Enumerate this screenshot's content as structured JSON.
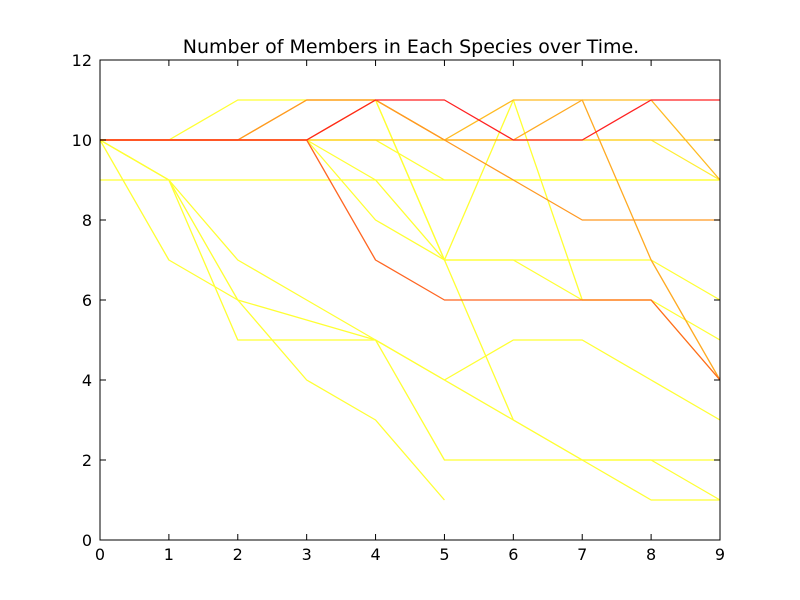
{
  "chart_data": {
    "type": "line",
    "title": "Number of Members in Each Species over Time.",
    "xlabel": "",
    "ylabel": "",
    "xlim": [
      0,
      9
    ],
    "ylim": [
      0,
      12
    ],
    "x_ticks": [
      0,
      1,
      2,
      3,
      4,
      5,
      6,
      7,
      8,
      9
    ],
    "y_ticks": [
      0,
      2,
      4,
      6,
      8,
      10,
      12
    ],
    "grid": false,
    "legend": "none",
    "series": [
      {
        "color": "#ffff33",
        "x": [
          0,
          1,
          2,
          3,
          4,
          5,
          6,
          7,
          8,
          9
        ],
        "y": [
          10,
          10,
          11,
          11,
          11,
          7,
          11,
          6,
          6,
          4
        ]
      },
      {
        "color": "#ffff33",
        "x": [
          0,
          1,
          2,
          3,
          4,
          5,
          6,
          7,
          8,
          9
        ],
        "y": [
          9,
          9,
          9,
          9,
          9,
          9,
          9,
          9,
          9,
          9
        ]
      },
      {
        "color": "#ffff33",
        "x": [
          0,
          1,
          2,
          3,
          4,
          5
        ],
        "y": [
          10,
          9,
          6,
          4,
          3,
          1
        ]
      },
      {
        "color": "#ffff33",
        "x": [
          0,
          1,
          2,
          3,
          4,
          5,
          6,
          7,
          8,
          9
        ],
        "y": [
          10,
          7,
          6,
          5.5,
          5,
          4,
          5,
          5,
          4,
          3
        ]
      },
      {
        "color": "#ffff33",
        "x": [
          0,
          1,
          2,
          3,
          4,
          5,
          6,
          7,
          8,
          9
        ],
        "y": [
          10,
          9,
          5,
          5,
          5,
          2,
          2,
          2,
          2,
          2
        ]
      },
      {
        "color": "#ffff33",
        "x": [
          0,
          1,
          2,
          3,
          4,
          5,
          6,
          7,
          8,
          9
        ],
        "y": [
          10,
          9,
          7,
          6,
          5,
          4,
          3,
          2,
          1,
          1
        ]
      },
      {
        "color": "#ffff33",
        "x": [
          0,
          1,
          2,
          3,
          4,
          5,
          6,
          7,
          8,
          9
        ],
        "y": [
          10,
          10,
          10,
          10,
          9,
          7,
          7,
          7,
          7,
          6
        ]
      },
      {
        "color": "#ffff33",
        "x": [
          0,
          1,
          2,
          3,
          4,
          5,
          6,
          7,
          8,
          9
        ],
        "y": [
          10,
          10,
          10,
          10,
          11,
          7,
          3,
          2,
          2,
          1
        ]
      },
      {
        "color": "#ffff33",
        "x": [
          0,
          1,
          2,
          3,
          4,
          5,
          6,
          7,
          8,
          9
        ],
        "y": [
          10,
          10,
          10,
          10,
          8,
          7,
          7,
          6,
          6,
          5
        ]
      },
      {
        "color": "#ffff33",
        "x": [
          0,
          1,
          2,
          3,
          4,
          5,
          6,
          7,
          8,
          9
        ],
        "y": [
          10,
          10,
          10,
          10,
          10,
          9,
          9,
          9,
          9,
          9
        ]
      },
      {
        "color": "#ffee33",
        "x": [
          0,
          1,
          2,
          3,
          4,
          5,
          6,
          7,
          8,
          9
        ],
        "y": [
          10,
          10,
          10,
          10,
          10,
          10,
          10,
          10,
          10,
          9
        ]
      },
      {
        "color": "#ffcc22",
        "x": [
          0,
          1,
          2,
          3,
          4,
          5,
          6,
          7,
          8,
          9
        ],
        "y": [
          10,
          10,
          10,
          10,
          10,
          10,
          10,
          10,
          10,
          10
        ]
      },
      {
        "color": "#ffbb22",
        "x": [
          0,
          1,
          2,
          3,
          4,
          5,
          6,
          7,
          8,
          9
        ],
        "y": [
          10,
          10,
          10,
          11,
          11,
          10,
          11,
          11,
          11,
          9
        ]
      },
      {
        "color": "#ffaa22",
        "x": [
          0,
          1,
          2,
          3,
          4,
          5,
          6,
          7,
          8,
          9
        ],
        "y": [
          10,
          10,
          10,
          10,
          11,
          10,
          10,
          11,
          7,
          4
        ]
      },
      {
        "color": "#ff9922",
        "x": [
          0,
          1,
          2,
          3,
          4,
          5,
          6,
          7,
          8,
          9
        ],
        "y": [
          10,
          10,
          10,
          11,
          11,
          10,
          9,
          8,
          8,
          8
        ]
      },
      {
        "color": "#ff6622",
        "x": [
          0,
          1,
          2,
          3,
          4,
          5,
          6,
          7,
          8,
          9
        ],
        "y": [
          10,
          10,
          10,
          10,
          7,
          6,
          6,
          6,
          6,
          4
        ]
      },
      {
        "color": "#ff2222",
        "x": [
          0,
          1,
          2,
          3,
          4,
          5,
          6,
          7,
          8,
          9
        ],
        "y": [
          10,
          10,
          10,
          10,
          11,
          11,
          10,
          10,
          11,
          11
        ]
      }
    ]
  }
}
